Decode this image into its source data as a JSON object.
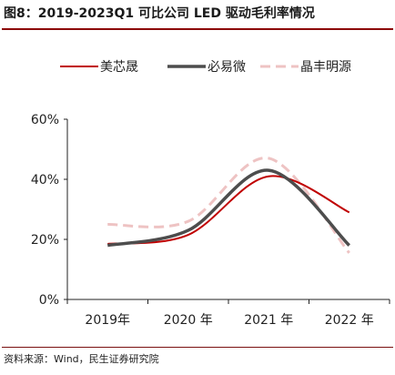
{
  "page": {
    "title": "图8：2019-2023Q1 可比公司 LED 驱动毛利率情况",
    "source": "资料来源：Wind，民生证券研究院"
  },
  "chart_data": {
    "type": "line",
    "title": "",
    "xlabel": "",
    "ylabel": "",
    "categories": [
      "2019年",
      "2020 年",
      "2021 年",
      "2022 年"
    ],
    "y_ticks": [
      "0%",
      "20%",
      "40%",
      "60%"
    ],
    "ylim": [
      0,
      60
    ],
    "grid": false,
    "legend_position": "top",
    "series": [
      {
        "name": "美芯晟",
        "values": [
          18.5,
          21.5,
          41.0,
          29.0
        ],
        "color": "#c00000",
        "style": "solid"
      },
      {
        "name": "必易微",
        "values": [
          18.0,
          23.0,
          43.0,
          18.0
        ],
        "color": "#4d4d4d",
        "style": "solid"
      },
      {
        "name": "晶丰明源",
        "values": [
          25.0,
          26.0,
          47.0,
          15.5
        ],
        "color": "#eec3c3",
        "style": "dashed"
      }
    ]
  }
}
